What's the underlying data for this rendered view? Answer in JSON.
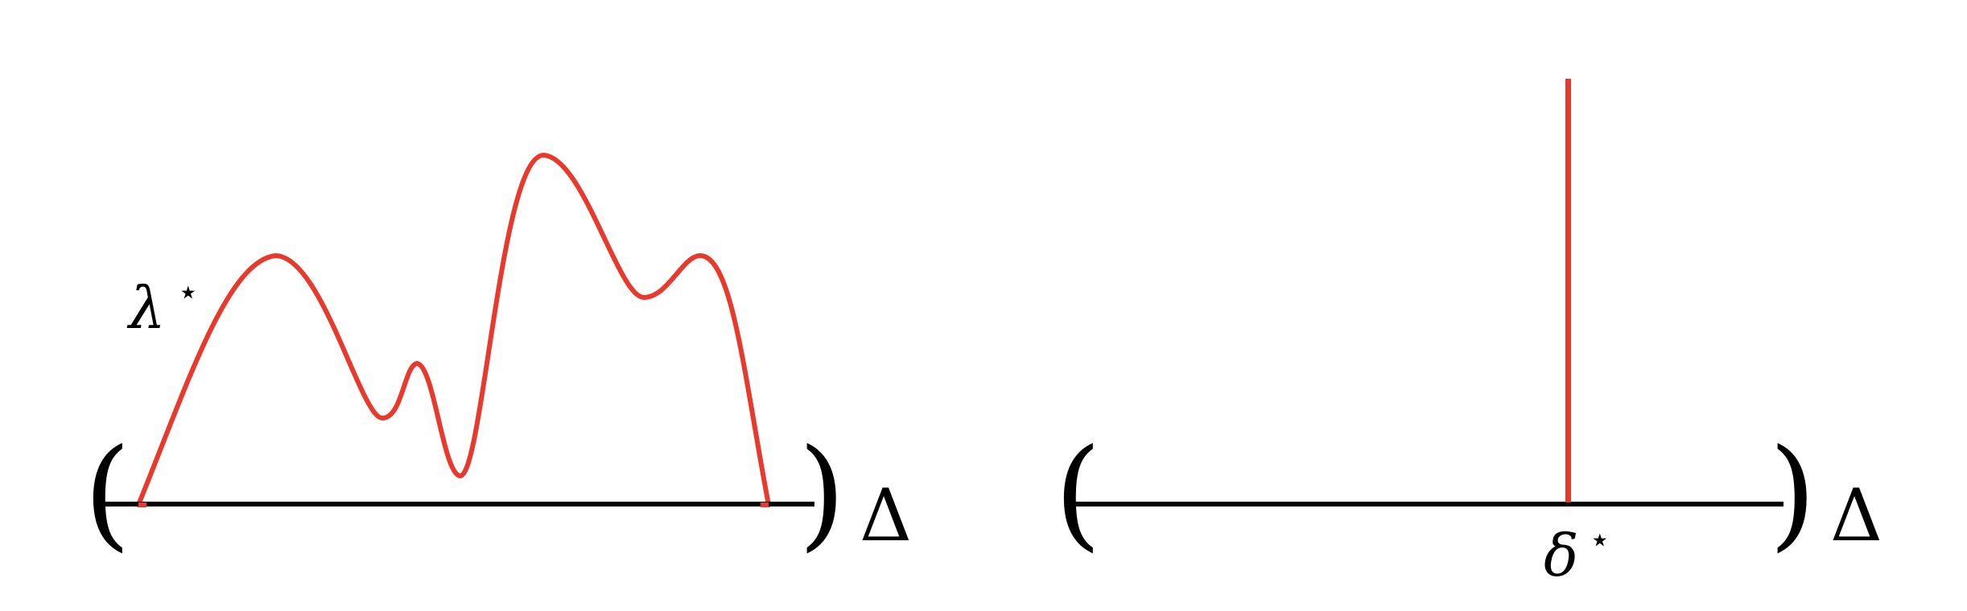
{
  "colors": {
    "curve": "#e8392c",
    "ink": "#000000",
    "background": "#ffffff"
  },
  "left_panel": {
    "density_label": "λ",
    "density_label_sup": "⋆",
    "open_paren": "(",
    "close_paren": ")",
    "space_label": "Δ"
  },
  "right_panel": {
    "point_label": "δ",
    "point_label_sup": "⋆",
    "open_paren": "(",
    "close_paren": ")",
    "space_label": "Δ"
  }
}
